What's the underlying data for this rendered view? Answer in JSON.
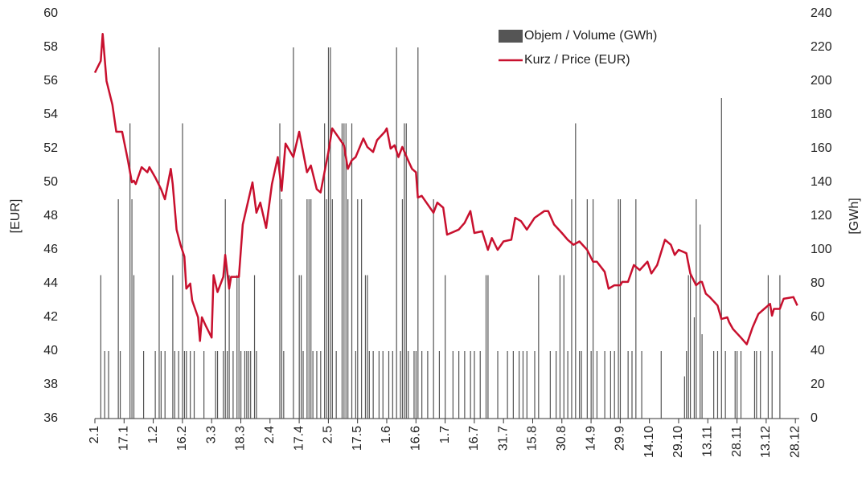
{
  "chart_data": {
    "type": "combo",
    "y_label": "[EUR]",
    "y2_label": "[GWh]",
    "xlim": [
      0,
      362
    ],
    "xticks": [
      {
        "value": 0,
        "label": "2.1"
      },
      {
        "value": 15,
        "label": "17.1"
      },
      {
        "value": 30,
        "label": "1.2"
      },
      {
        "value": 45,
        "label": "16.2"
      },
      {
        "value": 60,
        "label": "3.3"
      },
      {
        "value": 75,
        "label": "18.3"
      },
      {
        "value": 90,
        "label": "2.4"
      },
      {
        "value": 105,
        "label": "17.4"
      },
      {
        "value": 120,
        "label": "2.5"
      },
      {
        "value": 135,
        "label": "17.5"
      },
      {
        "value": 150,
        "label": "1.6"
      },
      {
        "value": 165,
        "label": "16.6"
      },
      {
        "value": 180,
        "label": "1.7"
      },
      {
        "value": 195,
        "label": "16.7"
      },
      {
        "value": 210,
        "label": "31.7"
      },
      {
        "value": 225,
        "label": "15.8"
      },
      {
        "value": 240,
        "label": "30.8"
      },
      {
        "value": 255,
        "label": "14.9"
      },
      {
        "value": 270,
        "label": "29.9"
      },
      {
        "value": 285,
        "label": "14.10"
      },
      {
        "value": 300,
        "label": "29.10"
      },
      {
        "value": 315,
        "label": "13.11"
      },
      {
        "value": 330,
        "label": "28.11"
      },
      {
        "value": 345,
        "label": "13.12"
      },
      {
        "value": 360,
        "label": "28.12"
      }
    ],
    "ylim": [
      36,
      60
    ],
    "yticks": [
      36,
      38,
      40,
      42,
      44,
      46,
      48,
      50,
      52,
      54,
      56,
      58,
      60
    ],
    "y2lim": [
      0,
      240
    ],
    "y2ticks": [
      0,
      20,
      40,
      60,
      80,
      100,
      120,
      140,
      160,
      180,
      200,
      220,
      240
    ],
    "legend": "top-right",
    "series": [
      {
        "name": "Objem / Volume (GWh)",
        "type": "bar",
        "axis": "y2",
        "color": "#555555",
        "x": [
          3,
          5,
          7,
          12,
          13,
          18,
          19,
          20,
          25,
          31,
          33,
          34,
          36,
          40,
          41,
          43,
          45,
          46,
          47,
          49,
          51,
          56,
          62,
          63,
          66,
          67,
          68,
          69,
          71,
          73,
          74,
          75,
          77,
          78,
          79,
          80,
          82,
          83,
          95,
          96,
          97,
          102,
          105,
          106,
          107,
          109,
          110,
          111,
          112,
          114,
          116,
          118,
          119,
          120,
          121,
          122,
          124,
          127,
          128,
          129,
          130,
          132,
          134,
          135,
          137,
          139,
          140,
          141,
          143,
          146,
          148,
          151,
          153,
          155,
          157,
          158,
          159,
          160,
          161,
          164,
          165,
          166,
          168,
          171,
          174,
          177,
          180,
          184,
          187,
          190,
          193,
          195,
          198,
          201,
          202,
          207,
          212,
          215,
          218,
          220,
          222,
          226,
          228,
          234,
          237,
          239,
          241,
          243,
          245,
          247,
          249,
          250,
          253,
          255,
          256,
          258,
          262,
          265,
          267,
          269,
          270,
          274,
          276,
          278,
          281,
          291,
          303,
          304,
          305,
          306,
          308,
          309,
          311,
          312,
          318,
          320,
          322,
          324,
          329,
          330,
          332,
          339,
          340,
          342,
          346,
          348,
          352
        ],
        "values": [
          85,
          40,
          40,
          130,
          40,
          175,
          130,
          85,
          40,
          40,
          220,
          40,
          40,
          85,
          40,
          40,
          175,
          40,
          40,
          40,
          40,
          40,
          40,
          40,
          40,
          130,
          40,
          85,
          40,
          85,
          85,
          40,
          40,
          40,
          40,
          40,
          85,
          40,
          175,
          130,
          40,
          220,
          85,
          85,
          40,
          130,
          130,
          130,
          40,
          40,
          40,
          175,
          130,
          220,
          220,
          130,
          40,
          175,
          175,
          175,
          130,
          175,
          40,
          130,
          130,
          85,
          85,
          40,
          40,
          40,
          40,
          40,
          40,
          220,
          40,
          130,
          175,
          175,
          40,
          40,
          40,
          220,
          40,
          40,
          130,
          40,
          85,
          40,
          40,
          40,
          40,
          40,
          40,
          85,
          85,
          40,
          40,
          40,
          40,
          40,
          40,
          40,
          85,
          40,
          40,
          85,
          85,
          40,
          130,
          175,
          40,
          40,
          130,
          40,
          130,
          40,
          40,
          40,
          40,
          130,
          130,
          40,
          40,
          130,
          40,
          40,
          25,
          40,
          85,
          85,
          60,
          130,
          115,
          50,
          40,
          40,
          190,
          40,
          40,
          40,
          40,
          40,
          40,
          40,
          85,
          40,
          85
        ]
      },
      {
        "name": "Kurz / Price (EUR)",
        "type": "line",
        "axis": "y",
        "color": "#c8102e",
        "x": [
          0,
          3,
          4,
          6,
          9,
          11,
          14,
          17,
          19,
          20,
          21,
          24,
          27,
          28,
          31,
          34,
          36,
          39,
          40,
          42,
          44,
          46,
          47,
          49,
          50,
          53,
          54,
          55,
          57,
          60,
          61,
          63,
          66,
          67,
          69,
          70,
          74,
          76,
          81,
          83,
          85,
          88,
          91,
          94,
          96,
          98,
          102,
          105,
          109,
          111,
          114,
          116,
          120,
          122,
          125,
          128,
          130,
          132,
          134,
          138,
          140,
          143,
          145,
          149,
          150,
          152,
          154,
          156,
          158,
          161,
          163,
          165,
          166,
          168,
          171,
          174,
          176,
          179,
          181,
          187,
          190,
          193,
          195,
          199,
          202,
          204,
          207,
          210,
          214,
          216,
          219,
          222,
          226,
          231,
          233,
          236,
          240,
          243,
          246,
          249,
          253,
          256,
          258,
          262,
          264,
          267,
          270,
          271,
          274,
          277,
          280,
          284,
          286,
          289,
          293,
          296,
          298,
          300,
          304,
          306,
          309,
          311,
          312,
          314,
          316,
          320,
          322,
          325,
          326,
          328,
          332,
          335,
          338,
          341,
          344,
          347,
          348,
          349,
          352,
          354,
          359,
          361
        ],
        "values": [
          56.5,
          57.2,
          58.8,
          56,
          54.6,
          53,
          53,
          51.3,
          50,
          50.1,
          49.9,
          50.9,
          50.6,
          50.9,
          50.3,
          49.6,
          49,
          50.8,
          49.9,
          47.2,
          46.3,
          45.6,
          43.7,
          44,
          43,
          42,
          40.6,
          42,
          41.5,
          40.8,
          44.5,
          43.5,
          44.4,
          45.7,
          43.7,
          44.4,
          44.4,
          47.5,
          50,
          48.2,
          48.8,
          47.3,
          49.9,
          51.5,
          49.5,
          52.3,
          51.5,
          53,
          50.6,
          51,
          49.6,
          49.4,
          51.8,
          53.2,
          52.7,
          52.2,
          50.8,
          51.3,
          51.5,
          52.6,
          52.1,
          51.8,
          52.5,
          53,
          53.2,
          52,
          52.2,
          51.5,
          52.1,
          51.3,
          50.8,
          50.6,
          49.1,
          49.2,
          48.7,
          48.2,
          48.8,
          48.5,
          46.9,
          47.2,
          47.6,
          48.3,
          47,
          47.1,
          46,
          46.7,
          46,
          46.5,
          46.6,
          47.9,
          47.7,
          47.2,
          47.9,
          48.3,
          48.3,
          47.5,
          47,
          46.6,
          46.3,
          46.5,
          46,
          45.3,
          45.3,
          44.7,
          43.7,
          43.9,
          43.9,
          44.1,
          44.1,
          45.1,
          44.8,
          45.3,
          44.6,
          45.1,
          46.6,
          46.3,
          45.7,
          46,
          45.8,
          44.6,
          43.9,
          44.1,
          44.1,
          43.4,
          43.2,
          42.7,
          41.9,
          42,
          41.7,
          41.3,
          40.8,
          40.4,
          41.4,
          42.2,
          42.5,
          42.8,
          42.1,
          42.5,
          42.5,
          43.1,
          43.2,
          42.7
        ]
      }
    ]
  }
}
